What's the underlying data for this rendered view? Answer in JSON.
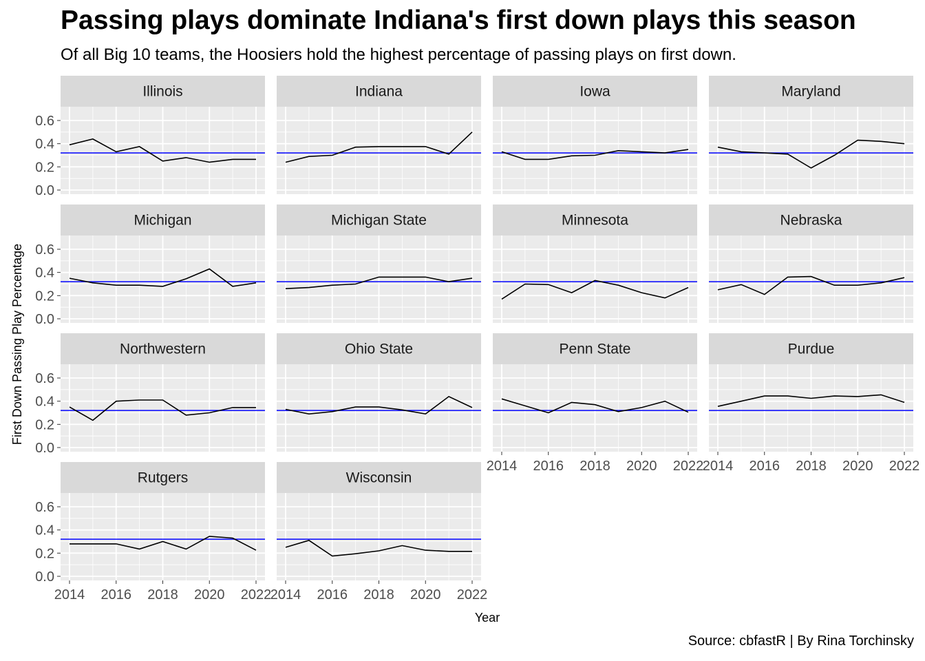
{
  "title": "Passing plays dominate Indiana's first down plays this season",
  "subtitle": "Of all Big 10 teams, the Hoosiers hold the highest percentage of passing plays on first down.",
  "caption": "Source: cbfastR | By Rina Torchinsky",
  "colors": {
    "panel_bg": "#ebebeb",
    "strip_bg": "#d9d9d9",
    "grid": "#ffffff",
    "line": "#000000",
    "reference_line": "#0000ff",
    "tick_text": "#4d4d4d"
  },
  "chart_data": {
    "type": "line",
    "facet": "small-multiples",
    "xlabel": "Year",
    "ylabel": "First Down Passing Play Percentage",
    "xlim": [
      2014,
      2022
    ],
    "ylim": [
      0,
      0.6
    ],
    "x_ticks": [
      "2014",
      "2016",
      "2018",
      "2020",
      "2022"
    ],
    "y_ticks": [
      "0.0",
      "0.2",
      "0.4",
      "0.6"
    ],
    "grid": true,
    "reference_line": 0.32,
    "x": [
      2014,
      2015,
      2016,
      2017,
      2018,
      2019,
      2020,
      2021,
      2022
    ],
    "series": [
      {
        "name": "Illinois",
        "values": [
          0.39,
          0.44,
          0.33,
          0.375,
          0.25,
          0.28,
          0.24,
          0.265,
          0.265
        ]
      },
      {
        "name": "Indiana",
        "values": [
          0.24,
          0.29,
          0.3,
          0.37,
          0.375,
          0.375,
          0.375,
          0.31,
          0.5
        ]
      },
      {
        "name": "Iowa",
        "values": [
          0.33,
          0.265,
          0.265,
          0.295,
          0.3,
          0.34,
          0.33,
          0.32,
          0.35
        ]
      },
      {
        "name": "Maryland",
        "values": [
          0.37,
          0.33,
          0.32,
          0.31,
          0.19,
          0.3,
          0.43,
          0.42,
          0.4
        ]
      },
      {
        "name": "Michigan",
        "values": [
          0.35,
          0.31,
          0.29,
          0.29,
          0.28,
          0.345,
          0.43,
          0.28,
          0.31
        ]
      },
      {
        "name": "Michigan State",
        "values": [
          0.26,
          0.27,
          0.29,
          0.3,
          0.36,
          0.36,
          0.36,
          0.32,
          0.35
        ]
      },
      {
        "name": "Minnesota",
        "values": [
          0.17,
          0.3,
          0.295,
          0.225,
          0.33,
          0.29,
          0.225,
          0.18,
          0.27
        ]
      },
      {
        "name": "Nebraska",
        "values": [
          0.25,
          0.295,
          0.21,
          0.36,
          0.365,
          0.29,
          0.29,
          0.31,
          0.355
        ]
      },
      {
        "name": "Northwestern",
        "values": [
          0.35,
          0.235,
          0.4,
          0.41,
          0.41,
          0.28,
          0.3,
          0.345,
          0.345
        ]
      },
      {
        "name": "Ohio State",
        "values": [
          0.33,
          0.29,
          0.31,
          0.35,
          0.35,
          0.325,
          0.29,
          0.44,
          0.345
        ]
      },
      {
        "name": "Penn State",
        "values": [
          0.42,
          0.36,
          0.3,
          0.39,
          0.37,
          0.31,
          0.345,
          0.4,
          0.305
        ]
      },
      {
        "name": "Purdue",
        "values": [
          0.355,
          0.4,
          0.445,
          0.445,
          0.425,
          0.445,
          0.44,
          0.455,
          0.39
        ]
      },
      {
        "name": "Rutgers",
        "values": [
          0.28,
          0.28,
          0.28,
          0.235,
          0.3,
          0.235,
          0.345,
          0.33,
          0.225
        ]
      },
      {
        "name": "Wisconsin",
        "values": [
          0.25,
          0.31,
          0.175,
          0.195,
          0.22,
          0.265,
          0.225,
          0.215,
          0.215
        ]
      }
    ]
  }
}
